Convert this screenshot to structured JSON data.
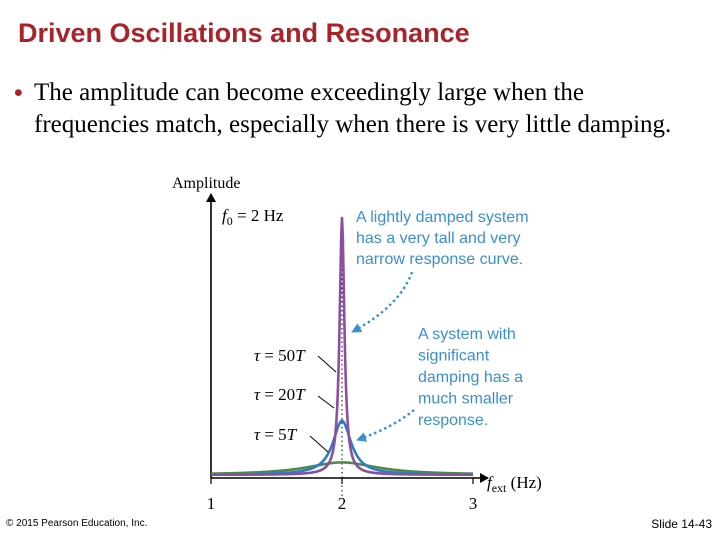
{
  "slide": {
    "title": "Driven Oscillations and Resonance",
    "bullet": "The amplitude can become exceedingly large when the frequencies match, especially when there is very little damping.",
    "footer_copyright": "© 2015 Pearson Education, Inc.",
    "slide_number": "Slide 14-43"
  },
  "colors": {
    "title": "#a8232a",
    "annotation": "#3a8fd0",
    "tau_50T": "#8a4f9e",
    "tau_20T": "#2a7fc4",
    "tau_5T": "#4b8a47",
    "axis": "#000000"
  },
  "chart_data": {
    "type": "line",
    "ylabel": "Amplitude",
    "xlabel_main": "f",
    "xlabel_sub": "ext",
    "xlabel_unit": "(Hz)",
    "natural_frequency_label": "= 2 Hz",
    "natural_frequency_var": "f",
    "natural_frequency_sub": "0",
    "xlim": [
      1,
      3
    ],
    "x_ticks": [
      1,
      2,
      3
    ],
    "f0": 2,
    "series": [
      {
        "name": "τ = 50T",
        "key": "tau_50T",
        "peak_amplitude": 1.0,
        "tau_over_T": 50
      },
      {
        "name": "τ = 20T",
        "key": "tau_20T",
        "peak_amplitude": 0.22,
        "tau_over_T": 20
      },
      {
        "name": "τ = 5T",
        "key": "tau_5T",
        "peak_amplitude": 0.06,
        "tau_over_T": 5
      }
    ],
    "annotations": {
      "light": [
        "A lightly damped system",
        "has a very tall and very",
        "narrow response curve."
      ],
      "heavy": [
        "A system with",
        "significant",
        "damping has a",
        "much smaller",
        "response."
      ]
    }
  }
}
